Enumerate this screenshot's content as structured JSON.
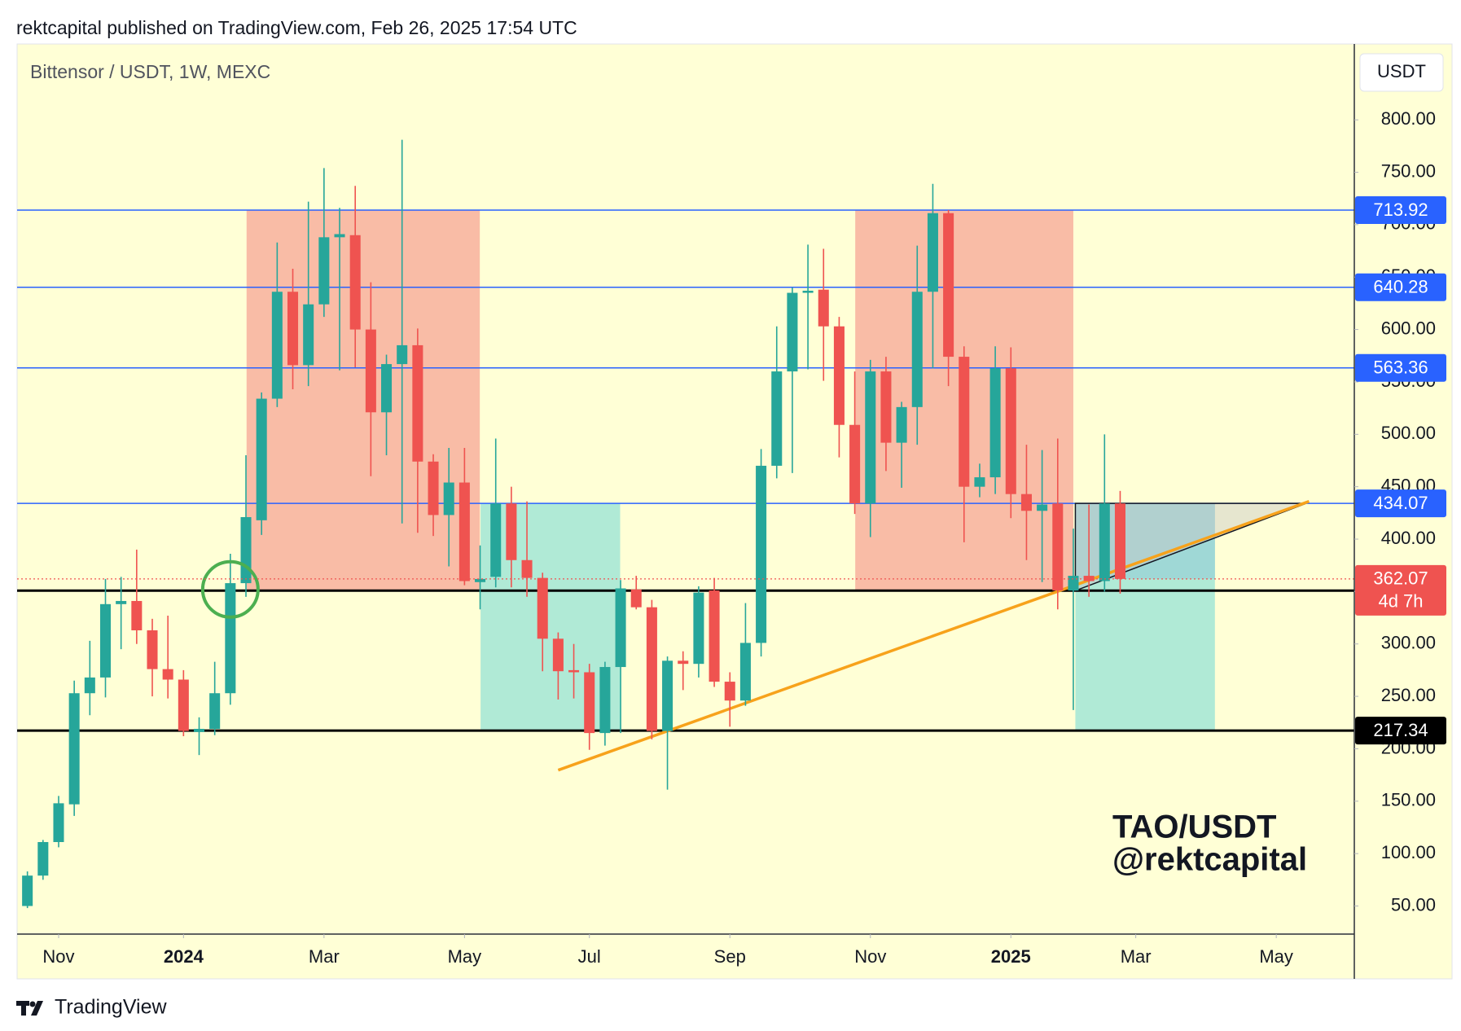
{
  "header": {
    "publisher": "rektcapital published on TradingView.com, Feb 26, 2025 17:54 UTC"
  },
  "chart_data": {
    "type": "candlestick",
    "title": "Bittensor / USDT, 1W, MEXC",
    "currency": "USDT",
    "watermark": [
      "TAO/USDT",
      "@rektcapital"
    ],
    "up_color": "#26a69a",
    "down_color": "#ef5350",
    "open": [
      50,
      79,
      111,
      147,
      253,
      268,
      338,
      341,
      313,
      276,
      266,
      216,
      219,
      253,
      358,
      418,
      534,
      636,
      566,
      624,
      688,
      690,
      600,
      521,
      567,
      585,
      474,
      423,
      454,
      359,
      364,
      434,
      380,
      363,
      305,
      275,
      273,
      215,
      278,
      352,
      335,
      217,
      284,
      281,
      351,
      264,
      246,
      301,
      470,
      560,
      635,
      638,
      603,
      509,
      434,
      560,
      492,
      526,
      636,
      711,
      574,
      450,
      459,
      563,
      443,
      427,
      434,
      351,
      365,
      360,
      434
    ],
    "high": [
      83,
      113,
      155,
      265,
      303,
      362,
      364,
      390,
      324,
      327,
      275,
      230,
      283,
      386,
      480,
      540,
      683,
      658,
      722,
      754,
      716,
      737,
      645,
      576,
      781,
      601,
      481,
      487,
      487,
      394,
      496,
      450,
      436,
      368,
      311,
      300,
      281,
      283,
      361,
      365,
      342,
      288,
      293,
      355,
      363,
      273,
      339,
      486,
      603,
      640,
      681,
      677,
      612,
      560,
      571,
      574,
      531,
      680,
      739,
      714,
      584,
      472,
      584,
      583,
      490,
      485,
      496,
      410,
      433,
      500,
      446
    ],
    "low": [
      48,
      75,
      106,
      136,
      232,
      249,
      295,
      300,
      250,
      248,
      212,
      194,
      213,
      242,
      345,
      404,
      526,
      543,
      546,
      612,
      561,
      564,
      460,
      480,
      415,
      406,
      403,
      374,
      356,
      333,
      354,
      354,
      345,
      274,
      247,
      248,
      199,
      203,
      215,
      333,
      209,
      161,
      256,
      268,
      259,
      221,
      241,
      288,
      458,
      463,
      562,
      551,
      478,
      424,
      402,
      465,
      449,
      490,
      563,
      546,
      397,
      440,
      443,
      420,
      380,
      359,
      333,
      237,
      345,
      350,
      348
    ],
    "close": [
      79,
      111,
      148,
      253,
      268,
      338,
      341,
      313,
      276,
      266,
      217,
      219,
      253,
      358,
      421,
      534,
      636,
      566,
      624,
      688,
      691,
      600,
      521,
      567,
      585,
      474,
      423,
      454,
      360,
      362,
      434,
      380,
      363,
      305,
      274,
      273,
      215,
      278,
      353,
      335,
      217,
      284,
      281,
      349,
      264,
      246,
      301,
      470,
      560,
      635,
      637,
      603,
      509,
      434,
      560,
      492,
      526,
      636,
      711,
      574,
      450,
      459,
      563,
      443,
      427,
      433,
      351,
      365,
      360,
      434,
      362.07
    ],
    "xlim": [
      -0.66,
      85
    ],
    "xticks": [
      {
        "value": 2,
        "label": "Nov"
      },
      {
        "value": 10,
        "label": "2024"
      },
      {
        "value": 19,
        "label": "Mar"
      },
      {
        "value": 28,
        "label": "May"
      },
      {
        "value": 36,
        "label": "Jul"
      },
      {
        "value": 45,
        "label": "Sep"
      },
      {
        "value": 54,
        "label": "Nov"
      },
      {
        "value": 63,
        "label": "2025"
      },
      {
        "value": 71,
        "label": "Mar"
      },
      {
        "value": 80,
        "label": "May"
      }
    ],
    "ylim": [
      23.2,
      872.4
    ],
    "yticks": [
      {
        "value": 50,
        "label": "50.00"
      },
      {
        "value": 100,
        "label": "100.00"
      },
      {
        "value": 150,
        "label": "150.00"
      },
      {
        "value": 200,
        "label": "200.00"
      },
      {
        "value": 250,
        "label": "250.00"
      },
      {
        "value": 300,
        "label": "300.00"
      },
      {
        "value": 350,
        "label": "350.00"
      },
      {
        "value": 400,
        "label": "400.00"
      },
      {
        "value": 450,
        "label": "450.00"
      },
      {
        "value": 500,
        "label": "500.00"
      },
      {
        "value": 550,
        "label": "550.00"
      },
      {
        "value": 600,
        "label": "600.00"
      },
      {
        "value": 650,
        "label": "650.00"
      },
      {
        "value": 700,
        "label": "700.00"
      },
      {
        "value": 750,
        "label": "750.00"
      },
      {
        "value": 800,
        "label": "800.00"
      }
    ],
    "levels": [
      {
        "value": 713.92,
        "color": "#2962ff"
      },
      {
        "value": 640.28,
        "color": "#2962ff"
      },
      {
        "value": 563.36,
        "color": "#2962ff"
      },
      {
        "value": 434.07,
        "color": "#2962ff"
      },
      {
        "value": 350.85,
        "color": "#000000"
      },
      {
        "value": 217.34,
        "color": "#000000"
      }
    ],
    "last_price": {
      "value": 362.07,
      "countdown": "4d 7h",
      "color": "#ef5350"
    },
    "zones": [
      {
        "x": [
          14.04,
          28.98
        ],
        "y": [
          350.85,
          713.92
        ],
        "color": "#f9bca6"
      },
      {
        "x": [
          29.03,
          37.97
        ],
        "y": [
          217.34,
          434.07
        ],
        "color": "#b0ead6"
      },
      {
        "x": [
          53.03,
          67.0
        ],
        "y": [
          350.85,
          713.92
        ],
        "color": "#f9bca6"
      },
      {
        "x": [
          67.13,
          76.07
        ],
        "y": [
          217.34,
          434.07
        ],
        "color": "#b0ead6"
      },
      {
        "x": [
          67.13,
          76.07
        ],
        "y": [
          362.07,
          434.07
        ],
        "color": "#9fd8d6"
      }
    ],
    "triangle": {
      "x": [
        67.13,
        81.9,
        67.13
      ],
      "y": [
        434.07,
        434.07,
        350.85
      ]
    },
    "trendline": {
      "x": [
        34.0,
        82.1
      ],
      "y": [
        179.6,
        436
      ],
      "color": "#f7a21b"
    },
    "marker": {
      "x": 13,
      "y": 352,
      "color": "#4caf50"
    }
  },
  "footer": {
    "brand": "TradingView"
  }
}
